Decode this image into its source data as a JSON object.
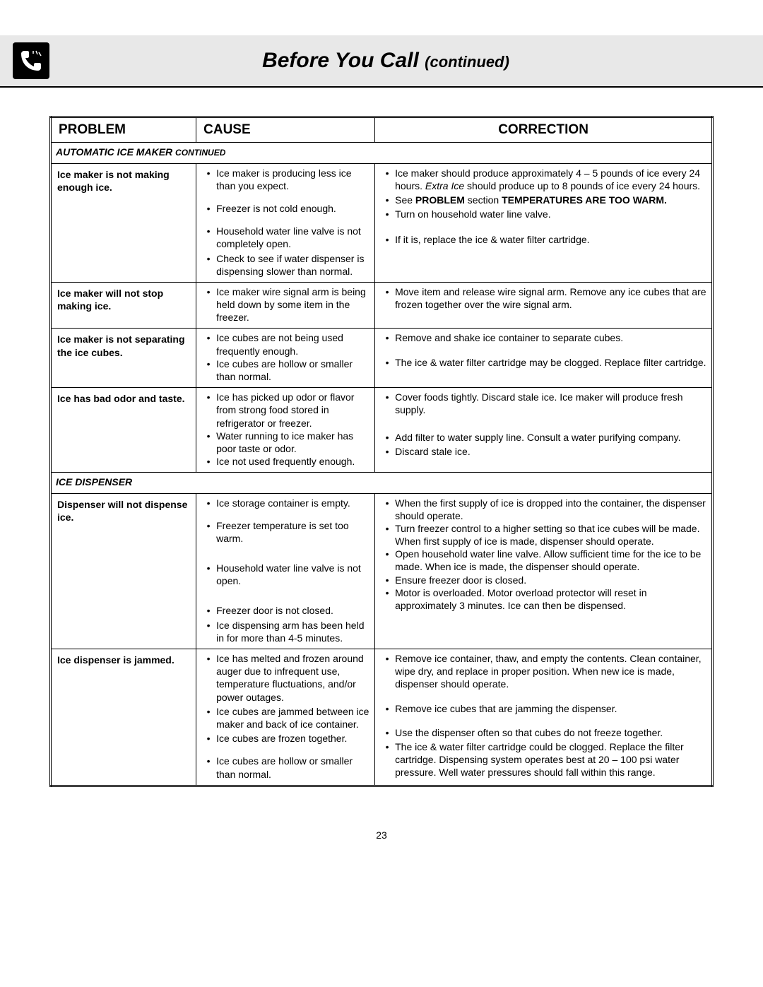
{
  "header": {
    "title_main": "Before You Call",
    "title_sub": "(continued)"
  },
  "columns": {
    "problem": "PROBLEM",
    "cause": "CAUSE",
    "correction": "CORRECTION"
  },
  "sections": [
    {
      "label_main": "AUTOMATIC ICE MAKER",
      "label_sub": "CONTINUED",
      "rows": [
        {
          "problem": "Ice maker is not making enough ice.",
          "causes": [
            "Ice maker is producing less ice than you expect.",
            "Freezer is not cold enough.",
            "Household water line valve is not completely open.",
            "Check to see if water dispenser is dispensing slower than normal."
          ],
          "corrections": [
            {
              "pre": "Ice maker should produce approximately 4 – 5 pounds of ice every 24 hours. ",
              "i": "Extra Ice",
              "post": " should produce up to 8 pounds of ice every 24 hours."
            },
            {
              "pre": "See ",
              "b1": "PROBLEM",
              "mid": " section ",
              "b2": "TEMPERATURES ARE TOO WARM.",
              "post": ""
            },
            {
              "pre": "Turn on household water line valve."
            },
            {
              "pre": "If it is, replace the ice & water filter cartridge."
            }
          ],
          "cause_spacing": "loose",
          "corr_spacing": "mixed1"
        },
        {
          "problem": "Ice maker will not stop making ice.",
          "causes": [
            "Ice maker wire signal arm is being held down by some item in the freezer."
          ],
          "corrections": [
            {
              "pre": "Move item and release wire signal arm. Remove any ice cubes that are frozen together over the wire signal arm."
            }
          ],
          "cause_spacing": "tight",
          "corr_spacing": "tight"
        },
        {
          "problem": "Ice maker is not separating the ice cubes.",
          "causes": [
            "Ice cubes are not being used frequently enough.",
            "Ice cubes are hollow or smaller than normal."
          ],
          "corrections": [
            {
              "pre": "Remove and shake ice container to separate cubes."
            },
            {
              "pre": "The ice & water filter cartridge may be clogged. Replace filter cartridge."
            }
          ],
          "cause_spacing": "tight",
          "corr_spacing": "match2"
        },
        {
          "problem": "Ice has bad odor and taste.",
          "causes": [
            "Ice has picked up odor or flavor from strong food stored in refrigerator or freezer.",
            "Water running to ice maker has poor taste or odor.",
            "Ice not used frequently enough."
          ],
          "corrections": [
            {
              "pre": "Cover foods tightly. Discard stale ice. Ice maker will produce fresh supply."
            },
            {
              "pre": "Add filter to water supply line. Consult a water purifying company."
            },
            {
              "pre": "Discard stale ice."
            }
          ],
          "cause_spacing": "tight",
          "corr_spacing": "match3"
        }
      ]
    },
    {
      "label_main": "ICE DISPENSER",
      "label_sub": "",
      "rows": [
        {
          "problem": "Dispenser will not dispense ice.",
          "causes": [
            "Ice storage container is empty.",
            "Freezer temperature is set too warm.",
            "Household water line valve is not open.",
            "Freezer door is not closed.",
            "Ice dispensing arm has been held in for more than 4-5 minutes."
          ],
          "corrections": [
            {
              "pre": "When the first supply of ice is dropped into the container, the dispenser should operate."
            },
            {
              "pre": "Turn freezer control to a higher setting so that ice cubes will be made. When first supply of ice is made, dispenser should operate."
            },
            {
              "pre": "Open household water line valve. Allow sufficient time for the ice to be made. When ice is made, the dispenser should operate."
            },
            {
              "pre": "Ensure freezer door is closed."
            },
            {
              "pre": "Motor is overloaded. Motor overload protector will reset in approximately 3 minutes. Ice can then be dispensed."
            }
          ],
          "cause_spacing": "dispenser1",
          "corr_spacing": "tight"
        },
        {
          "problem": "Ice dispenser is jammed.",
          "causes": [
            "Ice has melted and frozen around auger due to infrequent use, temperature fluctuations, and/or power outages.",
            "Ice cubes are jammed between ice maker and back of ice container.",
            "Ice cubes are frozen together.",
            "Ice cubes are hollow or smaller than normal."
          ],
          "corrections": [
            {
              "pre": "Remove ice container, thaw, and empty the contents. Clean container, wipe dry, and replace in proper position. When new ice is made, dispenser should operate."
            },
            {
              "pre": "Remove ice cubes that are jamming the dispenser."
            },
            {
              "pre": "Use the dispenser often so that cubes do not freeze together."
            },
            {
              "pre": "The ice & water filter cartridge could be clogged. Replace the filter cartridge. Dispensing system operates best at 20 – 100 psi water pressure. Well water pressures should fall within this range."
            }
          ],
          "cause_spacing": "jammed",
          "corr_spacing": "jammedcorr"
        }
      ]
    }
  ],
  "page_number": "23"
}
